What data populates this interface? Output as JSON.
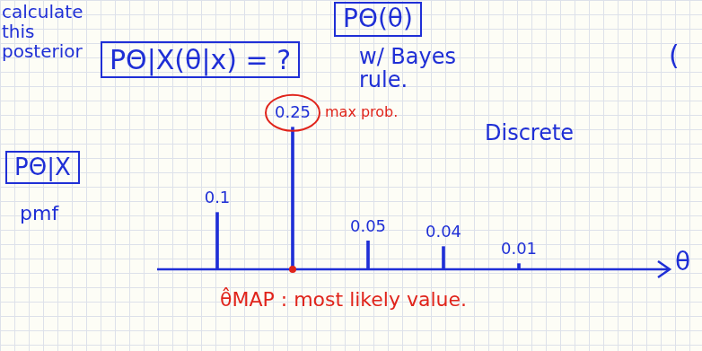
{
  "chart_data": {
    "type": "bar",
    "categories": [
      null,
      null,
      null,
      null,
      null
    ],
    "values": [
      0.1,
      0.25,
      0.05,
      0.04,
      0.01
    ],
    "color": "#1f2fd6",
    "ylim": [
      0,
      0.3
    ],
    "data_labels": true,
    "tick_labels": false,
    "grid": false,
    "x_label": "θ",
    "annotations": [
      "calculate this posterior",
      "PΘ|X(θ|x) = ?",
      "PΘ(θ)",
      "w/ Bayes rule.",
      "(",
      "Discrete",
      "PΘ|X",
      "pmf",
      "max prob.",
      "θ̂MAP : most likely value."
    ]
  }
}
